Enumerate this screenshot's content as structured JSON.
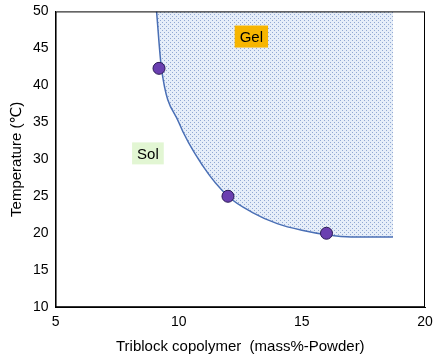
{
  "chart_data": {
    "type": "scatter",
    "x_label": "Triblock copolymer  (mass%-Powder)",
    "y_label": "Temperature (℃)",
    "xlim": [
      5,
      20
    ],
    "xticks": [
      5,
      10,
      15,
      20
    ],
    "ylim": [
      10,
      50
    ],
    "yticks": [
      10,
      15,
      20,
      25,
      30,
      35,
      40,
      45,
      50
    ],
    "grid": false,
    "annotations": [
      "Gel",
      "Sol"
    ],
    "series": [
      {
        "type": "area",
        "color": "#4a6fb5",
        "line_style": "solid",
        "x": [
          9.1,
          9.3,
          10,
          11,
          12,
          13,
          14,
          15,
          16,
          17,
          18.7
        ],
        "values": [
          50,
          42.3,
          35,
          29,
          25,
          22.8,
          21.3,
          20.4,
          19.8,
          19.5,
          19.5
        ]
      },
      {
        "type": "scatter",
        "color": "#6a3fb0",
        "marker": "circle",
        "x": [
          9.2,
          12,
          16
        ],
        "values": [
          42.3,
          25,
          20
        ]
      }
    ]
  }
}
